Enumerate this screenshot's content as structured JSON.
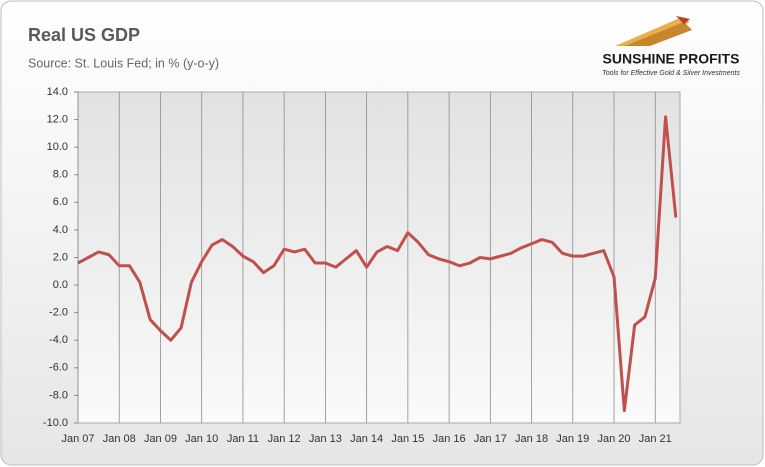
{
  "chart_data": {
    "type": "line",
    "title": "Real US GDP",
    "subtitle": "Source: St. Louis Fed; in % (y-o-y)",
    "categories": [
      "Jan 07",
      null,
      null,
      null,
      "Jan 08",
      null,
      null,
      null,
      "Jan 09",
      null,
      null,
      null,
      "Jan 10",
      null,
      null,
      null,
      "Jan 11",
      null,
      null,
      null,
      "Jan 12",
      null,
      null,
      null,
      "Jan 13",
      null,
      null,
      null,
      "Jan 14",
      null,
      null,
      null,
      "Jan 15",
      null,
      null,
      null,
      "Jan 16",
      null,
      null,
      null,
      "Jan 17",
      null,
      null,
      null,
      "Jan 18",
      null,
      null,
      null,
      "Jan 19",
      null,
      null,
      null,
      "Jan 20",
      null,
      null,
      null,
      "Jan 21",
      null,
      null
    ],
    "values": [
      1.6,
      2.0,
      2.4,
      2.2,
      1.4,
      1.4,
      0.2,
      -2.5,
      -3.3,
      -4.0,
      -3.1,
      0.2,
      1.7,
      2.9,
      3.3,
      2.8,
      2.1,
      1.7,
      0.9,
      1.4,
      2.6,
      2.4,
      2.6,
      1.6,
      1.6,
      1.3,
      1.9,
      2.5,
      1.3,
      2.4,
      2.8,
      2.5,
      3.8,
      3.1,
      2.2,
      1.9,
      1.7,
      1.4,
      1.6,
      2.0,
      1.9,
      2.1,
      2.3,
      2.7,
      3.0,
      3.3,
      3.1,
      2.3,
      2.1,
      2.1,
      2.3,
      2.5,
      0.6,
      -9.1,
      -2.9,
      -2.3,
      0.5,
      12.2,
      4.9
    ],
    "color": "#c0504d",
    "ylim": [
      -10,
      14
    ],
    "yticks": [
      {
        "value": -10,
        "label": "-10.0"
      },
      {
        "value": -8,
        "label": "-8.0"
      },
      {
        "value": -6,
        "label": "-6.0"
      },
      {
        "value": -4,
        "label": "-4.0"
      },
      {
        "value": -2,
        "label": "-2.0"
      },
      {
        "value": 0,
        "label": "0.0"
      },
      {
        "value": 2,
        "label": "2.0"
      },
      {
        "value": 4,
        "label": "4.0"
      },
      {
        "value": 6,
        "label": "6.0"
      },
      {
        "value": 8,
        "label": "8.0"
      },
      {
        "value": 10,
        "label": "10.0"
      },
      {
        "value": 12,
        "label": "12.0"
      },
      {
        "value": 14,
        "label": "14.0"
      }
    ],
    "grid": true
  },
  "logo": {
    "name": "SUNSHINE PROFITS",
    "tagline": "Tools for Effective Gold & Silver Investments"
  }
}
